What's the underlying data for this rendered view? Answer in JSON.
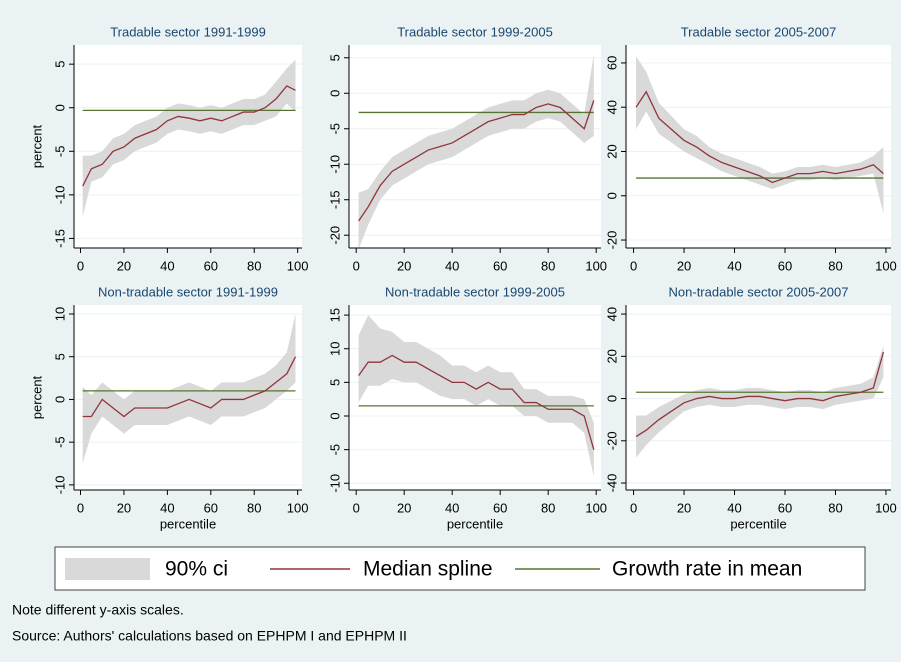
{
  "chart_data": [
    {
      "type": "line",
      "title": "Tradable sector 1991-1999",
      "ylabel": "percent",
      "x": [
        1,
        5,
        10,
        15,
        20,
        25,
        30,
        35,
        40,
        45,
        50,
        55,
        60,
        65,
        70,
        75,
        80,
        85,
        90,
        95,
        99
      ],
      "xlim": [
        -3,
        102
      ],
      "xticks": [
        0,
        20,
        40,
        60,
        80,
        100
      ],
      "ylim": [
        -16.1,
        7.2
      ],
      "yticks": [
        -15,
        -10,
        -5,
        0,
        5
      ],
      "grid": true,
      "series": [
        {
          "name": "90% ci",
          "color": "#d9d9d9",
          "lower": [
            -12.5,
            -8.5,
            -8,
            -6.5,
            -6,
            -5,
            -4.5,
            -4,
            -3,
            -2.5,
            -2.7,
            -3,
            -2.7,
            -3,
            -2.5,
            -2,
            -2,
            -1.5,
            -1,
            0.5,
            -0.5
          ],
          "upper": [
            -5.5,
            -5.5,
            -5,
            -3.5,
            -3,
            -2,
            -1.5,
            -1,
            0,
            0.5,
            0.3,
            0,
            0.3,
            0,
            0.5,
            1,
            1,
            1.5,
            3,
            4.5,
            5.5
          ]
        },
        {
          "name": "Median spline",
          "color": "#90353b",
          "values": [
            -9,
            -7,
            -6.5,
            -5,
            -4.5,
            -3.5,
            -3,
            -2.5,
            -1.5,
            -1,
            -1.2,
            -1.5,
            -1.2,
            -1.5,
            -1,
            -0.5,
            -0.5,
            0,
            1,
            2.5,
            2
          ]
        },
        {
          "name": "Growth rate in mean",
          "color": "#55752f",
          "value": -0.3
        }
      ]
    },
    {
      "type": "line",
      "title": "Tradable sector 1999-2005",
      "x": [
        1,
        5,
        10,
        15,
        20,
        25,
        30,
        35,
        40,
        45,
        50,
        55,
        60,
        65,
        70,
        75,
        80,
        85,
        90,
        95,
        99
      ],
      "xlim": [
        -3,
        102
      ],
      "xticks": [
        0,
        20,
        40,
        60,
        80,
        100
      ],
      "ylim": [
        -21.8,
        6.8
      ],
      "yticks": [
        -20,
        -15,
        -10,
        -5,
        0,
        5
      ],
      "grid": true,
      "series": [
        {
          "color": "#d9d9d9",
          "lower": [
            -22,
            -18.5,
            -15,
            -13,
            -12,
            -11,
            -10,
            -9.5,
            -9,
            -8,
            -7,
            -6,
            -5.5,
            -5,
            -5,
            -4,
            -3.5,
            -4,
            -5.5,
            -7,
            -6
          ],
          "upper": [
            -14,
            -13.5,
            -11,
            -9,
            -8,
            -7,
            -6,
            -5.5,
            -5,
            -4,
            -3,
            -2,
            -1.5,
            -1,
            -1,
            0,
            0.5,
            0,
            -1.5,
            -3,
            5.5
          ]
        },
        {
          "color": "#90353b",
          "values": [
            -18,
            -16,
            -13,
            -11,
            -10,
            -9,
            -8,
            -7.5,
            -7,
            -6,
            -5,
            -4,
            -3.5,
            -3,
            -3,
            -2,
            -1.5,
            -2,
            -3.5,
            -5,
            -1
          ]
        },
        {
          "color": "#55752f",
          "value": -2.7
        }
      ]
    },
    {
      "type": "line",
      "title": "Tradable sector 2005-2007",
      "x": [
        1,
        5,
        10,
        15,
        20,
        25,
        30,
        35,
        40,
        45,
        50,
        55,
        60,
        65,
        70,
        75,
        80,
        85,
        90,
        95,
        99
      ],
      "xlim": [
        -3,
        102
      ],
      "xticks": [
        0,
        20,
        40,
        60,
        80,
        100
      ],
      "ylim": [
        -23.6,
        68.1
      ],
      "yticks": [
        -20,
        0,
        20,
        40,
        60
      ],
      "grid": true,
      "series": [
        {
          "color": "#d9d9d9",
          "lower": [
            30,
            38,
            28,
            24,
            20,
            17,
            14,
            11,
            9,
            7,
            5,
            3,
            5,
            7,
            7,
            8,
            7,
            8,
            9,
            10,
            -8
          ],
          "upper": [
            63,
            56,
            42,
            36,
            30,
            27,
            22,
            19,
            17,
            15,
            13,
            10,
            11,
            13,
            13,
            14,
            13,
            14,
            15,
            18,
            22
          ]
        },
        {
          "color": "#90353b",
          "values": [
            40,
            47,
            35,
            30,
            25,
            22,
            18,
            15,
            13,
            11,
            9,
            6,
            8,
            10,
            10,
            11,
            10,
            11,
            12,
            14,
            10
          ]
        },
        {
          "color": "#55752f",
          "value": 8
        }
      ]
    },
    {
      "type": "line",
      "title": "Non-tradable sector 1991-1999",
      "ylabel": "percent",
      "xlabel": "percentile",
      "x": [
        1,
        5,
        10,
        15,
        20,
        25,
        30,
        35,
        40,
        45,
        50,
        55,
        60,
        65,
        70,
        75,
        80,
        85,
        90,
        95,
        99
      ],
      "xlim": [
        -3,
        102
      ],
      "xticks": [
        0,
        20,
        40,
        60,
        80,
        100
      ],
      "ylim": [
        -10.6,
        11.05
      ],
      "yticks": [
        -10,
        -5,
        0,
        5,
        10
      ],
      "grid": true,
      "series": [
        {
          "color": "#d9d9d9",
          "lower": [
            -7.5,
            -4,
            -2,
            -3,
            -4,
            -3,
            -3,
            -3,
            -3,
            -2.5,
            -2,
            -2.5,
            -3,
            -2,
            -2,
            -2,
            -1.5,
            -1,
            0,
            1,
            2
          ],
          "upper": [
            1.5,
            0.5,
            2,
            1,
            0,
            1,
            1,
            1,
            1,
            1.5,
            2,
            1.5,
            1,
            2,
            2,
            2,
            2.5,
            3,
            4,
            5.5,
            10
          ]
        },
        {
          "color": "#90353b",
          "values": [
            -2,
            -2,
            0,
            -1,
            -2,
            -1,
            -1,
            -1,
            -1,
            -0.5,
            0,
            -0.5,
            -1,
            0,
            0,
            0,
            0.5,
            1,
            2,
            3,
            5
          ]
        },
        {
          "color": "#55752f",
          "value": 1
        }
      ]
    },
    {
      "type": "line",
      "title": "Non-tradable sector 1999-2005",
      "xlabel": "percentile",
      "x": [
        1,
        5,
        10,
        15,
        20,
        25,
        30,
        35,
        40,
        45,
        50,
        55,
        60,
        65,
        70,
        75,
        80,
        85,
        90,
        95,
        99
      ],
      "xlim": [
        -3,
        102
      ],
      "xticks": [
        0,
        20,
        40,
        60,
        80,
        100
      ],
      "ylim": [
        -11,
        16.5
      ],
      "yticks": [
        -10,
        -5,
        0,
        5,
        10,
        15
      ],
      "grid": true,
      "series": [
        {
          "color": "#d9d9d9",
          "lower": [
            2,
            4.5,
            4.5,
            5.5,
            5,
            5,
            4,
            3,
            2.5,
            2.5,
            1.5,
            2.5,
            1.5,
            1.5,
            0,
            0,
            -1,
            -1,
            -1,
            -2.5,
            -9
          ],
          "upper": [
            12,
            15,
            13,
            12.5,
            11,
            11,
            10,
            9,
            7.5,
            7.5,
            6.5,
            7.5,
            6.5,
            6.5,
            4,
            4,
            3,
            3,
            3,
            2.5,
            -1
          ]
        },
        {
          "color": "#90353b",
          "values": [
            6,
            8,
            8,
            9,
            8,
            8,
            7,
            6,
            5,
            5,
            4,
            5,
            4,
            4,
            2,
            2,
            1,
            1,
            1,
            0,
            -5
          ]
        },
        {
          "color": "#55752f",
          "value": 1.5
        }
      ]
    },
    {
      "type": "line",
      "title": "Non-tradable sector 2005-2007",
      "xlabel": "percentile",
      "x": [
        1,
        5,
        10,
        15,
        20,
        25,
        30,
        35,
        40,
        45,
        50,
        55,
        60,
        65,
        70,
        75,
        80,
        85,
        90,
        95,
        99
      ],
      "xlim": [
        -3,
        102
      ],
      "xticks": [
        0,
        20,
        40,
        60,
        80,
        100
      ],
      "ylim": [
        -43.3,
        44.3
      ],
      "yticks": [
        -40,
        -20,
        0,
        20,
        40
      ],
      "grid": true,
      "series": [
        {
          "color": "#d9d9d9",
          "lower": [
            -28,
            -22,
            -16,
            -11,
            -6,
            -4,
            -3,
            -4,
            -4,
            -3,
            -3,
            -4,
            -5,
            -4,
            -4,
            -5,
            -3,
            -2,
            -1,
            0,
            10
          ],
          "upper": [
            -8,
            -8,
            -4,
            -1,
            2,
            4,
            5,
            4,
            4,
            5,
            5,
            4,
            3,
            4,
            4,
            3,
            5,
            6,
            7,
            10,
            25
          ]
        },
        {
          "color": "#90353b",
          "values": [
            -18,
            -15,
            -10,
            -6,
            -2,
            0,
            1,
            0,
            0,
            1,
            1,
            0,
            -1,
            0,
            0,
            -1,
            1,
            2,
            3,
            5,
            22
          ]
        },
        {
          "color": "#55752f",
          "value": 3
        }
      ]
    }
  ],
  "notes": [
    "Note different y-axis scales.",
    "Source: Authors' calculations based on EPHPM I and EPHPM II"
  ]
}
